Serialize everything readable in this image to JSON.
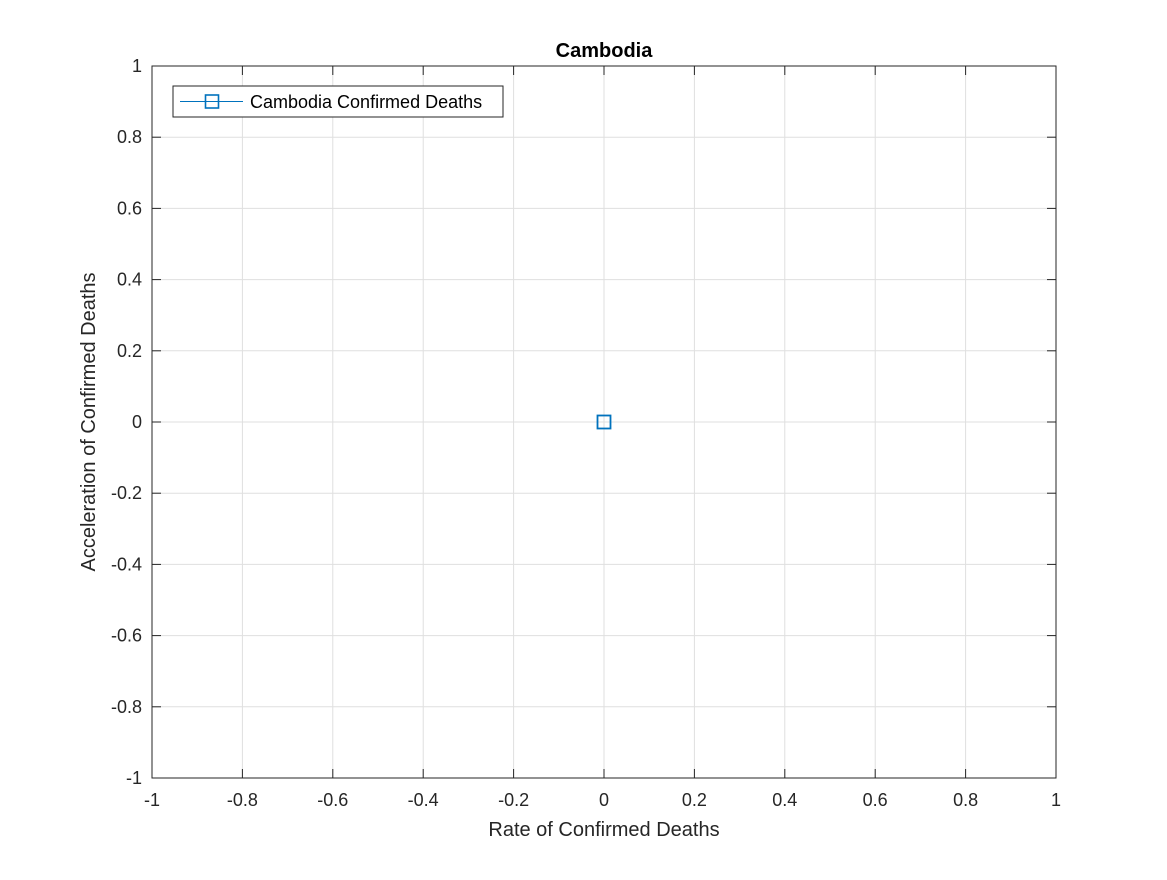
{
  "chart_data": {
    "type": "scatter",
    "title": "Cambodia",
    "xlabel": "Rate of Confirmed Deaths",
    "ylabel": "Acceleration of Confirmed Deaths",
    "xlim": [
      -1,
      1
    ],
    "ylim": [
      -1,
      1
    ],
    "xticks": [
      -1,
      -0.8,
      -0.6,
      -0.4,
      -0.2,
      0,
      0.2,
      0.4,
      0.6,
      0.8,
      1
    ],
    "yticks": [
      -1,
      -0.8,
      -0.6,
      -0.4,
      -0.2,
      0,
      0.2,
      0.4,
      0.6,
      0.8,
      1
    ],
    "xtick_labels": [
      "-1",
      "-0.8",
      "-0.6",
      "-0.4",
      "-0.2",
      "0",
      "0.2",
      "0.4",
      "0.6",
      "0.8",
      "1"
    ],
    "ytick_labels": [
      "-1",
      "-0.8",
      "-0.6",
      "-0.4",
      "-0.2",
      "0",
      "0.2",
      "0.4",
      "0.6",
      "0.8",
      "1"
    ],
    "grid": true,
    "legend_position": "top-left",
    "series": [
      {
        "name": "Cambodia Confirmed Deaths",
        "marker": "square",
        "color": "#0072BD",
        "x": [
          0
        ],
        "y": [
          0
        ]
      }
    ]
  }
}
